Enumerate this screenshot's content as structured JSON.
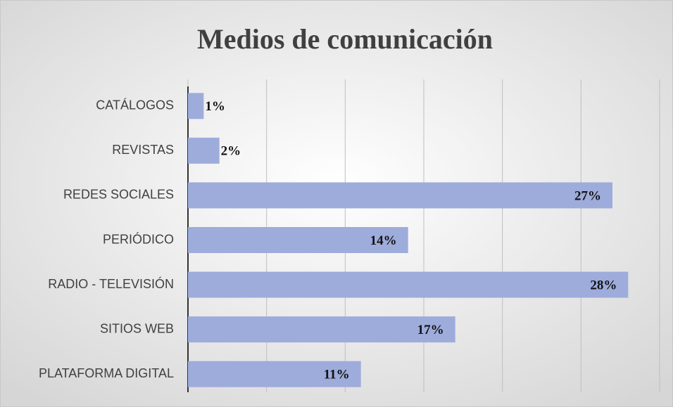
{
  "chart_data": {
    "type": "barh",
    "title": "Medios de comunicación",
    "categories": [
      "CATÁLOGOS",
      "REVISTAS",
      "REDES SOCIALES",
      "PERIÓDICO",
      "RADIO - TELEVISIÓN",
      "SITIOS WEB",
      "PLATAFORMA DIGITAL"
    ],
    "values": [
      1,
      2,
      27,
      14,
      28,
      17,
      11
    ],
    "value_labels": [
      "1%",
      "2%",
      "27%",
      "14%",
      "28%",
      "17%",
      "11%"
    ],
    "color": "#9eacdb",
    "xlim": [
      0,
      30
    ],
    "xticks": [
      0,
      5,
      10,
      15,
      20,
      25,
      30
    ],
    "grid": true
  }
}
